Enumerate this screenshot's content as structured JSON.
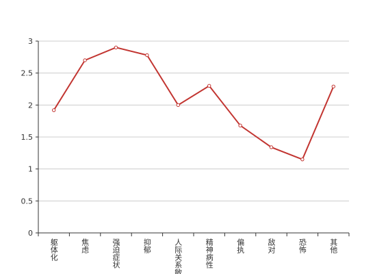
{
  "chart_data": {
    "type": "line",
    "categories": [
      "躯体化",
      "焦虑",
      "强迫症状",
      "抑郁",
      "人际关系敏感",
      "精神病性",
      "偏执",
      "敌对",
      "恐怖",
      "其他"
    ],
    "values": [
      1.92,
      2.7,
      2.9,
      2.78,
      2.0,
      2.3,
      1.68,
      1.34,
      1.15,
      2.29
    ],
    "color": "#c23531",
    "ylim": [
      0,
      3
    ],
    "yticks": [
      0,
      0.5,
      1,
      1.5,
      2,
      2.5,
      3
    ],
    "grid": true
  }
}
